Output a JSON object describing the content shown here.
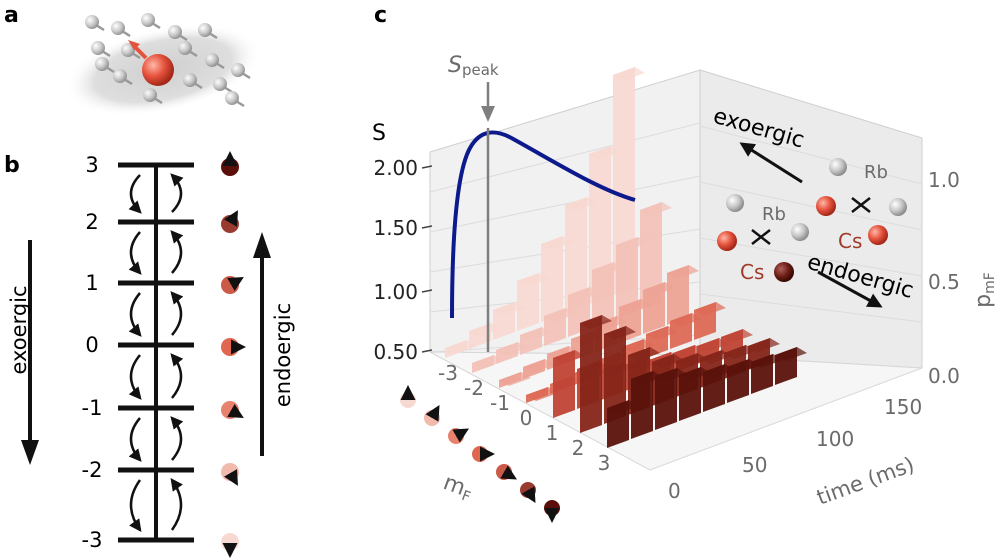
{
  "panel_a": {
    "label": "a"
  },
  "panel_b": {
    "label": "b",
    "levels": [
      "3",
      "2",
      "1",
      "0",
      "-1",
      "-2",
      "-3"
    ],
    "exoergic_label": "exoergic",
    "endoergic_label": "endoergic",
    "spin_colors": [
      "#5a0f0a",
      "#9a3b30",
      "#cc5a48",
      "#e06650",
      "#e8826e",
      "#f2b9ad",
      "#f8d9d2"
    ]
  },
  "panel_c": {
    "label": "c",
    "s_peak": {
      "base": "S",
      "sub": "peak"
    },
    "s_axis": {
      "label": "S",
      "ticks": [
        "2.00",
        "1.50",
        "1.00",
        "0.50"
      ]
    },
    "p_axis": {
      "label_base": "p",
      "label_sub": "mF",
      "ticks": [
        "1.0",
        "0.5",
        "0.0"
      ]
    },
    "mf_axis": {
      "label_base": "m",
      "label_sub": "F",
      "ticks": [
        "-3",
        "-2",
        "-1",
        "0",
        "1",
        "2",
        "3"
      ]
    },
    "time_axis": {
      "label": "time (ms)",
      "ticks": [
        "0",
        "50",
        "100",
        "150"
      ]
    },
    "inset": {
      "exoergic_label": "exoergic",
      "endoergic_label": "endoergic",
      "rb_label_top": "Rb",
      "cs_label_top": "Cs",
      "rb_label_bottom": "Rb",
      "cs_label_bottom": "Cs"
    },
    "curve_color": "#0d1a8c"
  }
}
